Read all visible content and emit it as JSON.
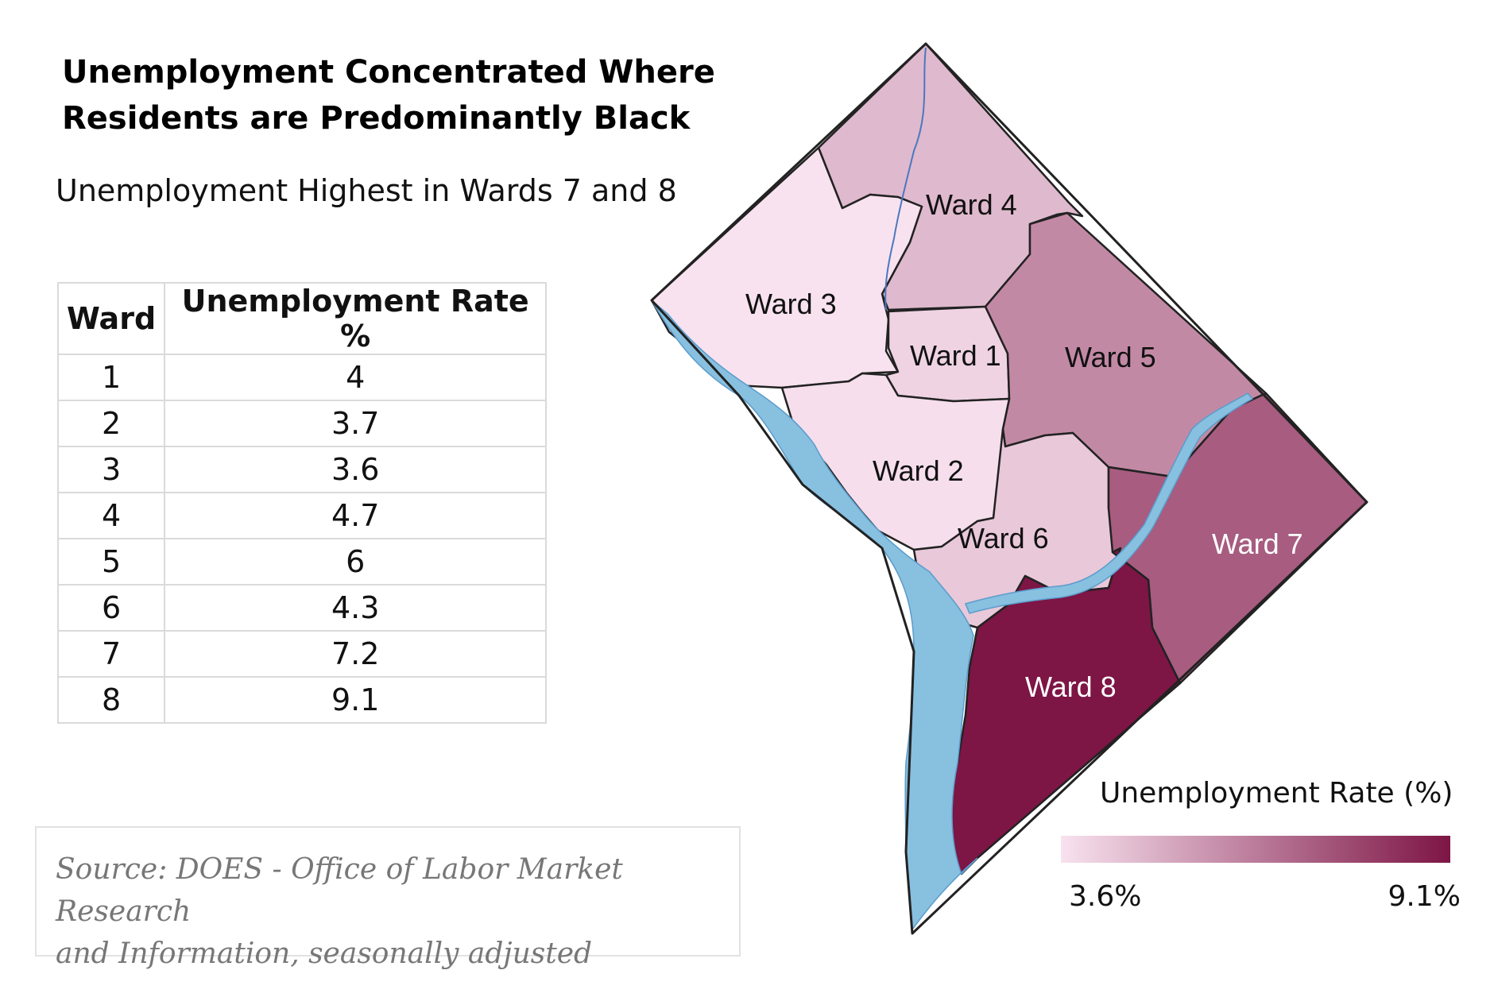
{
  "title_line1": "Unemployment Concentrated Where",
  "title_line2": "Residents are Predominantly Black",
  "subtitle": "Unemployment Highest in Wards 7 and 8",
  "table": {
    "headers": [
      "Ward",
      "Unemployment Rate %"
    ],
    "rows": [
      {
        "ward": "1",
        "rate": "4"
      },
      {
        "ward": "2",
        "rate": "3.7"
      },
      {
        "ward": "3",
        "rate": "3.6"
      },
      {
        "ward": "4",
        "rate": "4.7"
      },
      {
        "ward": "5",
        "rate": "6"
      },
      {
        "ward": "6",
        "rate": "4.3"
      },
      {
        "ward": "7",
        "rate": "7.2"
      },
      {
        "ward": "8",
        "rate": "9.1"
      }
    ]
  },
  "source_line1": "Source: DOES - Office of  Labor Market Research",
  "source_line2": "and Information, seasonally adjusted",
  "map": {
    "wards": [
      {
        "id": "1",
        "label": "Ward 1",
        "rate": 4.0
      },
      {
        "id": "2",
        "label": "Ward 2",
        "rate": 3.7
      },
      {
        "id": "3",
        "label": "Ward 3",
        "rate": 3.6
      },
      {
        "id": "4",
        "label": "Ward 4",
        "rate": 4.7
      },
      {
        "id": "5",
        "label": "Ward 5",
        "rate": 6.0
      },
      {
        "id": "6",
        "label": "Ward 6",
        "rate": 4.3
      },
      {
        "id": "7",
        "label": "Ward 7",
        "rate": 7.2
      },
      {
        "id": "8",
        "label": "Ward 8",
        "rate": 9.1
      }
    ],
    "water_color": "#88c0e0",
    "border_color": "#222222"
  },
  "legend": {
    "title": "Unemployment Rate (%)",
    "min_label": "3.6%",
    "max_label": "9.1%",
    "min_value": 3.6,
    "max_value": 9.1,
    "min_color": "#f8e2ef",
    "max_color": "#7d1545"
  }
}
